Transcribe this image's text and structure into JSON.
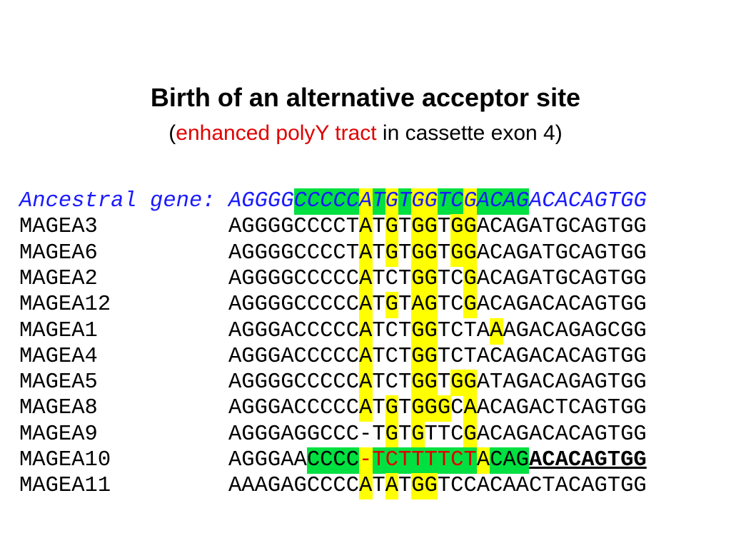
{
  "title": "Birth of an alternative acceptor site",
  "subtitle": {
    "open": "(",
    "highlight": "enhanced polyY tract",
    "rest": "in cassette exon 4)"
  },
  "alignment": {
    "ancestral": {
      "label": "Ancestral gene:",
      "sequence": "AGGGGCCCCCATGTGGTCGACAGACACAGTGG"
    },
    "rows": [
      {
        "name": "MAGEA3",
        "sequence": "AGGGGCCCCTATGTGGTGGACAGATGCAGTGG"
      },
      {
        "name": "MAGEA6",
        "sequence": "AGGGGCCCCTATGTGGTGGACAGATGCAGTGG"
      },
      {
        "name": "MAGEA2",
        "sequence": "AGGGGCCCCCATCTGGTCGACAGATGCAGTGG"
      },
      {
        "name": "MAGEA12",
        "sequence": "AGGGGCCCCCATGTAGTCGACAGACACAGTGG"
      },
      {
        "name": "MAGEA1",
        "sequence": "AGGGACCCCCATCTGGTCTAAAGACAGAGCGG"
      },
      {
        "name": "MAGEA4",
        "sequence": "AGGGACCCCCATCTGGTCTACAGACACAGTGG"
      },
      {
        "name": "MAGEA5",
        "sequence": "AGGGGCCCCCATCTGGTGGATAGACAGAGTGG"
      },
      {
        "name": "MAGEA8",
        "sequence": "AGGGACCCCCATGTGGGCAACAGACTCAGTGG"
      },
      {
        "name": "MAGEA9",
        "sequence": "AGGGAGGCCC-TGTGTTCGACAGACACAGTGG"
      },
      {
        "name": "MAGEA10",
        "segments": [
          "AGGGAACCCC",
          "-TCTTTTCT",
          "ACAG",
          "ACACAGTGG"
        ]
      },
      {
        "name": "MAGEA11",
        "sequence": "AAAGAGCCCCATATGGTCCACAACTACAGTGG"
      }
    ]
  }
}
